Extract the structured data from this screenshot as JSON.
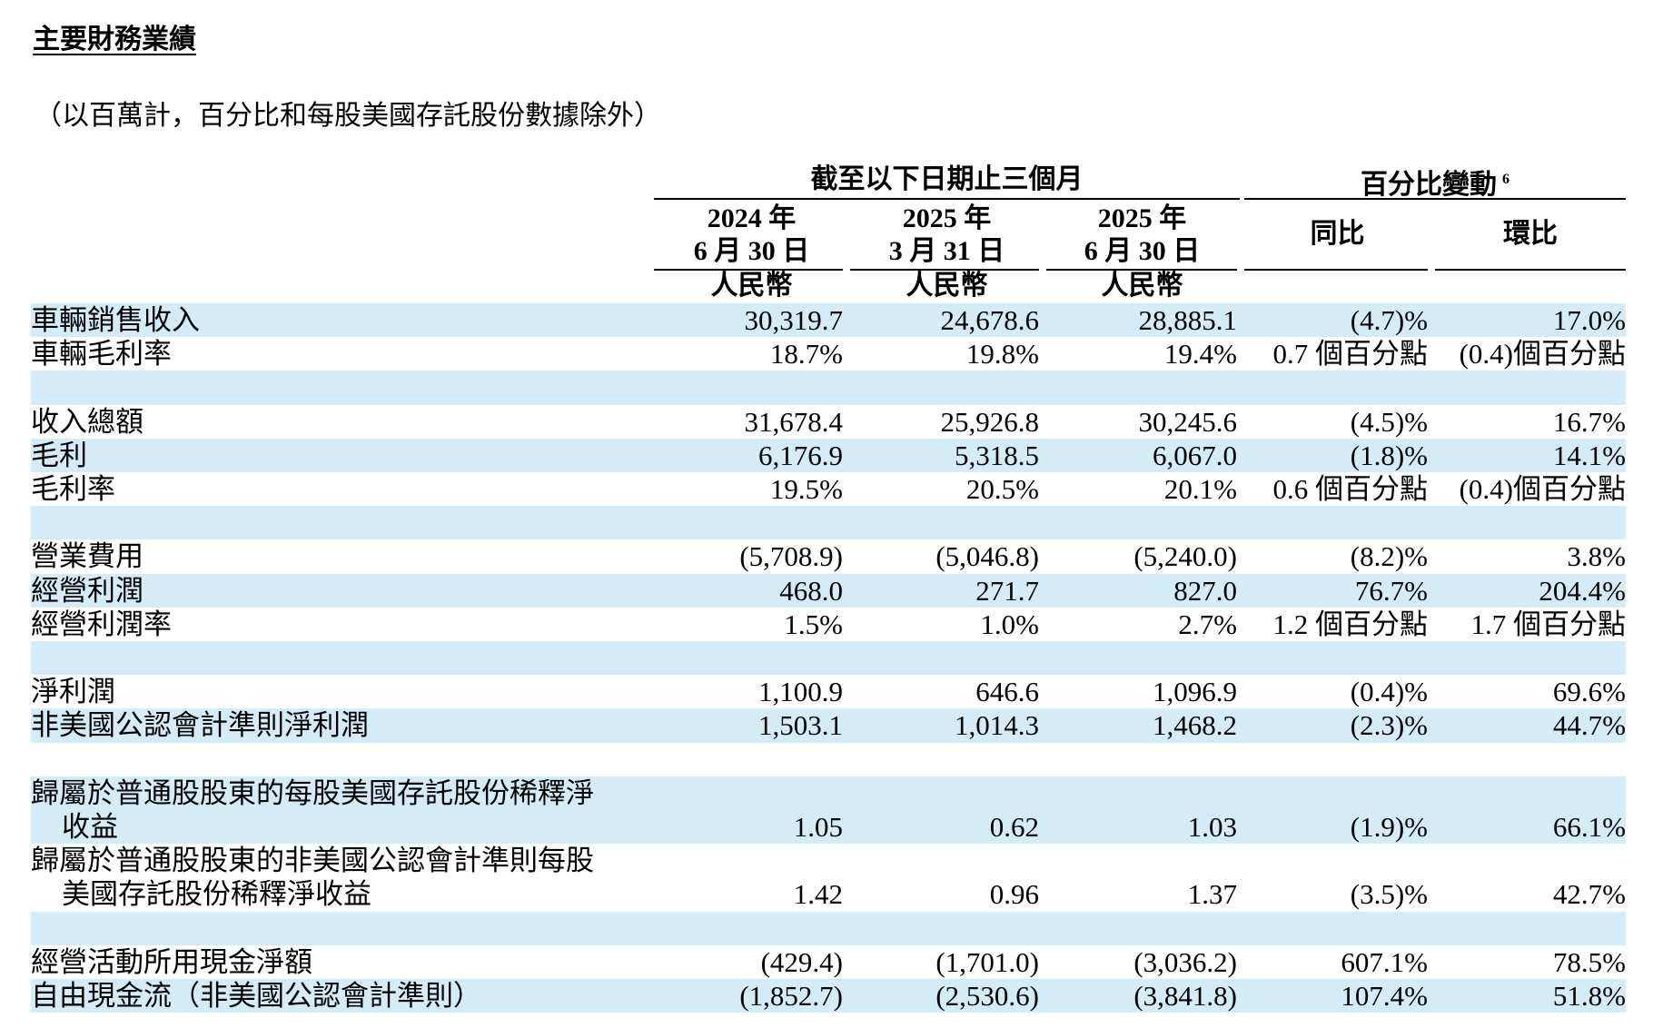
{
  "title": "主要財務業績",
  "subtitle": "（以百萬計，百分比和每股美國存託股份數據除外）",
  "header": {
    "period_group": "截至以下日期止三個月",
    "change_group": "百分比變動",
    "change_footnote": "6",
    "columns": [
      {
        "year": "2024 年",
        "date": "6 月 30 日",
        "currency": "人民幣"
      },
      {
        "year": "2025 年",
        "date": "3 月 31 日",
        "currency": "人民幣"
      },
      {
        "year": "2025 年",
        "date": "6 月 30 日",
        "currency": "人民幣"
      }
    ],
    "yoy": "同比",
    "qoq": "環比"
  },
  "rows": [
    {
      "label": "車輛銷售收入",
      "values": [
        "30,319.7",
        "24,678.6",
        "28,885.1",
        "(4.7)%",
        "17.0%"
      ]
    },
    {
      "label": "車輛毛利率",
      "values": [
        "18.7%",
        "19.8%",
        "19.4%",
        "0.7 個百分點",
        "(0.4)個百分點"
      ]
    },
    {
      "label": "",
      "values": [
        "",
        "",
        "",
        "",
        ""
      ]
    },
    {
      "label": "收入總額",
      "values": [
        "31,678.4",
        "25,926.8",
        "30,245.6",
        "(4.5)%",
        "16.7%"
      ]
    },
    {
      "label": "毛利",
      "values": [
        "6,176.9",
        "5,318.5",
        "6,067.0",
        "(1.8)%",
        "14.1%"
      ]
    },
    {
      "label": "毛利率",
      "values": [
        "19.5%",
        "20.5%",
        "20.1%",
        "0.6 個百分點",
        "(0.4)個百分點"
      ]
    },
    {
      "label": "",
      "values": [
        "",
        "",
        "",
        "",
        ""
      ]
    },
    {
      "label": "營業費用",
      "values": [
        "(5,708.9)",
        "(5,046.8)",
        "(5,240.0)",
        "(8.2)%",
        "3.8%"
      ]
    },
    {
      "label": "經營利潤",
      "values": [
        "468.0",
        "271.7",
        "827.0",
        "76.7%",
        "204.4%"
      ]
    },
    {
      "label": "經營利潤率",
      "values": [
        "1.5%",
        "1.0%",
        "2.7%",
        "1.2 個百分點",
        "1.7 個百分點"
      ]
    },
    {
      "label": "",
      "values": [
        "",
        "",
        "",
        "",
        ""
      ]
    },
    {
      "label": "淨利潤",
      "values": [
        "1,100.9",
        "646.6",
        "1,096.9",
        "(0.4)%",
        "69.6%"
      ]
    },
    {
      "label": "非美國公認會計準則淨利潤",
      "values": [
        "1,503.1",
        "1,014.3",
        "1,468.2",
        "(2.3)%",
        "44.7%"
      ]
    },
    {
      "label": "",
      "values": [
        "",
        "",
        "",
        "",
        ""
      ]
    },
    {
      "label": "歸屬於普通股股東的每股美國存託股份稀釋淨",
      "label2": "收益",
      "values": [
        "1.05",
        "0.62",
        "1.03",
        "(1.9)%",
        "66.1%"
      ]
    },
    {
      "label": "歸屬於普通股股東的非美國公認會計準則每股",
      "label2": "美國存託股份稀釋淨收益",
      "values": [
        "1.42",
        "0.96",
        "1.37",
        "(3.5)%",
        "42.7%"
      ]
    },
    {
      "label": "",
      "values": [
        "",
        "",
        "",
        "",
        ""
      ]
    },
    {
      "label": "經營活動所用現金淨額",
      "values": [
        "(429.4)",
        "(1,701.0)",
        "(3,036.2)",
        "607.1%",
        "78.5%"
      ]
    },
    {
      "label": "自由現金流（非美國公認會計準則）",
      "values": [
        "(1,852.7)",
        "(2,530.6)",
        "(3,841.8)",
        "107.4%",
        "51.8%"
      ]
    }
  ],
  "colors": {
    "row_shade": "#d4ebf8",
    "text": "#000000"
  }
}
